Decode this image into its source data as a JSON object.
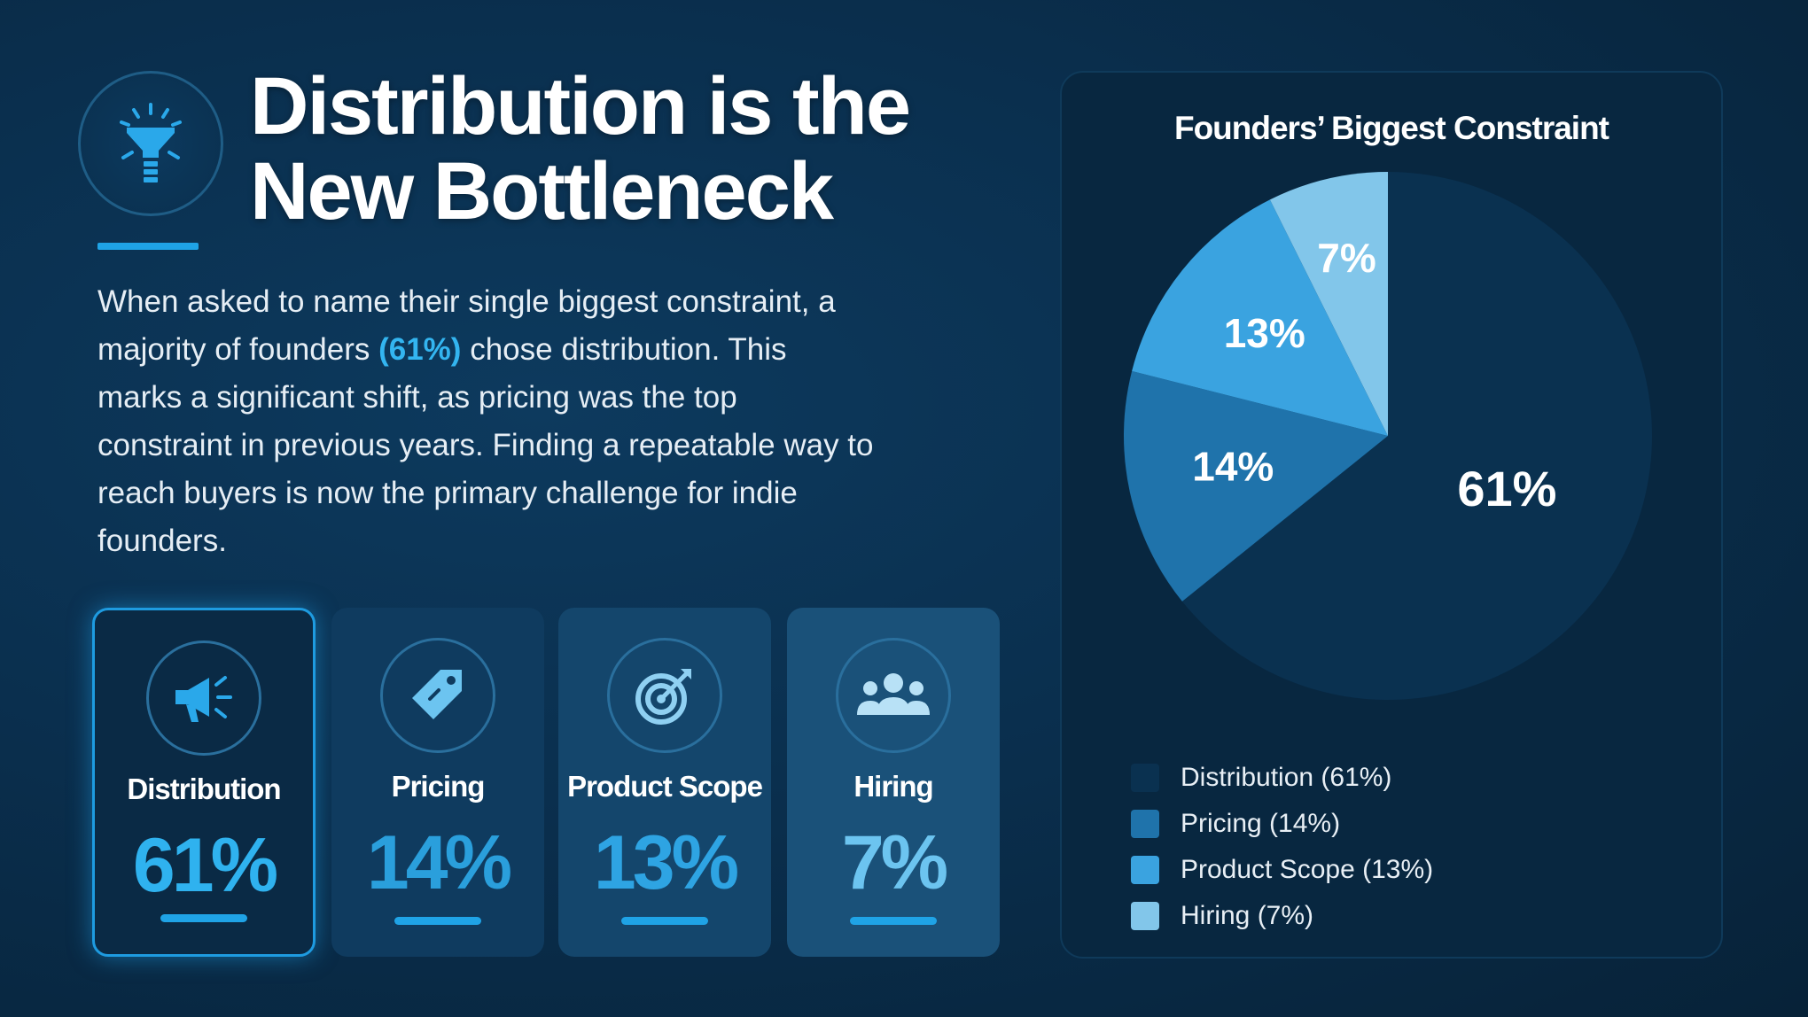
{
  "header": {
    "title_line1": "Distribution is the",
    "title_line2": "New Bottleneck",
    "icon": "funnel-icon"
  },
  "body": {
    "part1": "When asked to name their single biggest constraint, a majority of founders ",
    "highlight": "(61%)",
    "part2": " chose distribution. This marks a significant shift, as pricing was the top constraint in previous years. Finding a repeatable way to reach buyers is now the primary challenge for indie founders."
  },
  "cards": [
    {
      "label": "Distribution",
      "value": "61%",
      "icon": "megaphone-icon"
    },
    {
      "label": "Pricing",
      "value": "14%",
      "icon": "price-tag-icon"
    },
    {
      "label": "Product Scope",
      "value": "13%",
      "icon": "target-icon"
    },
    {
      "label": "Hiring",
      "value": "7%",
      "icon": "team-icon"
    }
  ],
  "colors": {
    "accent": "#1fa3e6",
    "background": "#0a2f4e",
    "panel": "#082740"
  },
  "chart_data": {
    "type": "pie",
    "title": "Founders’ Biggest Constraint",
    "categories": [
      "Distribution",
      "Pricing",
      "Product Scope",
      "Hiring"
    ],
    "values": [
      61,
      14,
      13,
      7
    ],
    "slice_labels": [
      "61%",
      "14%",
      "13%",
      "7%"
    ],
    "legend": [
      "Distribution (61%)",
      "Pricing (14%)",
      "Product Scope (13%)",
      "Hiring (7%)"
    ],
    "colors": [
      "#0a3150",
      "#1f73ab",
      "#3aa3e0",
      "#82c6ea"
    ],
    "legend_position": "bottom"
  }
}
